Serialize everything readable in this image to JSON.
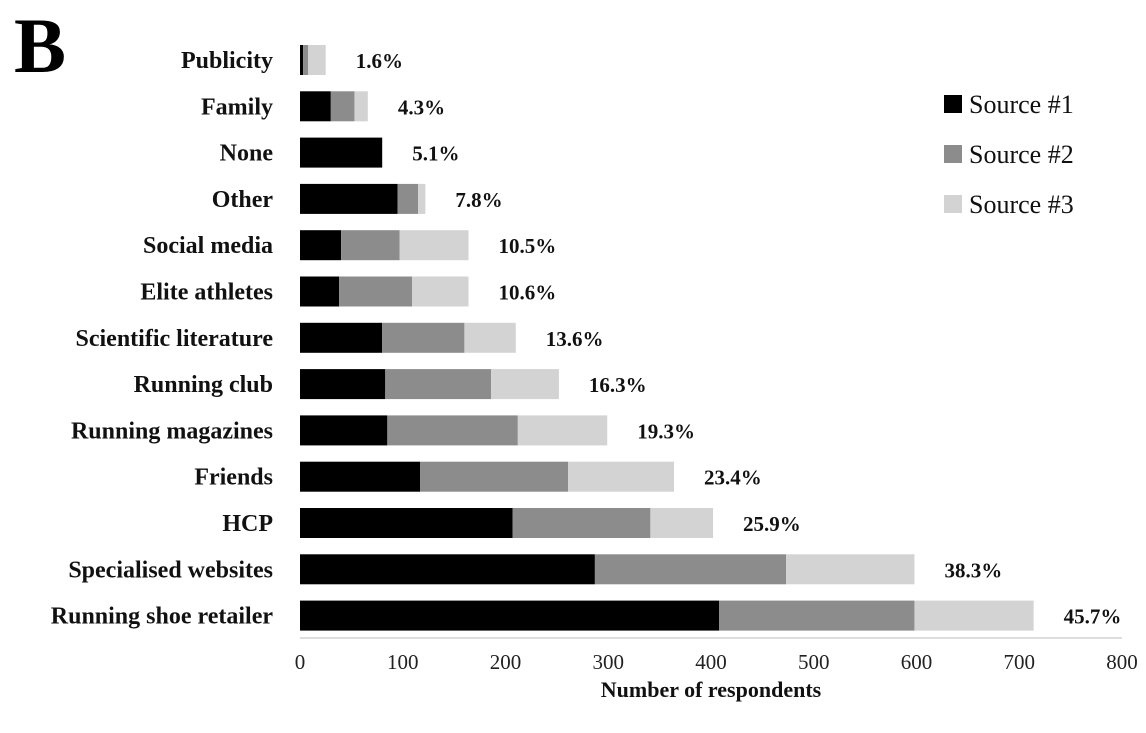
{
  "panel_letter": "B",
  "chart_data": {
    "type": "bar",
    "orientation": "horizontal",
    "stacked": true,
    "categories": [
      "Publicity",
      "Family",
      "None",
      "Other",
      "Social media",
      "Elite athletes",
      "Scientific literature",
      "Running club",
      "Running magazines",
      "Friends",
      "HCP",
      "Specialised websites",
      "Running shoe retailer"
    ],
    "series": [
      {
        "name": "Source #1",
        "color": "#000000",
        "values": [
          3,
          30,
          80,
          95,
          40,
          38,
          80,
          83,
          85,
          117,
          207,
          287,
          408
        ]
      },
      {
        "name": "Source #2",
        "color": "#8c8c8c",
        "values": [
          5,
          23,
          0,
          20,
          57,
          71,
          80,
          103,
          127,
          144,
          134,
          186,
          190
        ]
      },
      {
        "name": "Source #3",
        "color": "#d3d3d3",
        "values": [
          17,
          13,
          0,
          7,
          67,
          55,
          50,
          66,
          87,
          103,
          61,
          125,
          116
        ]
      }
    ],
    "data_labels": [
      "1.6%",
      "4.3%",
      "5.1%",
      "7.8%",
      "10.5%",
      "10.6%",
      "13.6%",
      "16.3%",
      "19.3%",
      "23.4%",
      "25.9%",
      "38.3%",
      "45.7%"
    ],
    "xlim": [
      0,
      800
    ],
    "xticks": [
      0,
      100,
      200,
      300,
      400,
      500,
      600,
      700,
      800
    ],
    "xlabel": "Number of respondents",
    "ylabel": "",
    "title": "",
    "grid": false,
    "legend_position": "top-right"
  }
}
